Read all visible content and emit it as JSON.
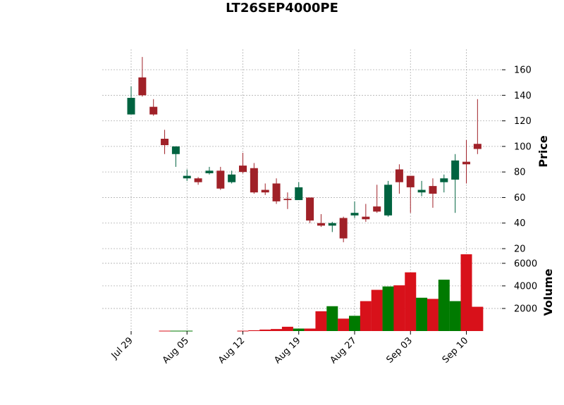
{
  "chart_data": {
    "type": "candlestick",
    "title": "LT26SEP4000PE",
    "ylabel_price": "Price",
    "ylabel_volume": "Volume",
    "price_ylim": [
      20,
      176
    ],
    "volume_ylim": [
      0,
      7300
    ],
    "price_ticks": [
      "20",
      "40",
      "60",
      "80",
      "100",
      "120",
      "140",
      "160"
    ],
    "volume_ticks": [
      "2000",
      "4000",
      "6000"
    ],
    "x_tick_labels": [
      {
        "index": 0,
        "label": "Jul 29"
      },
      {
        "index": 5,
        "label": "Aug 05"
      },
      {
        "index": 10,
        "label": "Aug 12"
      },
      {
        "index": 15,
        "label": "Aug 19"
      },
      {
        "index": 20,
        "label": "Aug 27"
      },
      {
        "index": 25,
        "label": "Sep 03"
      },
      {
        "index": 30,
        "label": "Sep 10"
      }
    ],
    "up_color": "#006340",
    "down_color": "#a02128",
    "volume_up_color": "#007a00",
    "volume_down_color": "#d8111a",
    "grid": true,
    "candles": [
      {
        "o": 125,
        "h": 147,
        "l": 125,
        "c": 138,
        "v": 0
      },
      {
        "o": 154,
        "h": 170,
        "l": 139,
        "c": 140,
        "v": 0
      },
      {
        "o": 131,
        "h": 137,
        "l": 124,
        "c": 125,
        "v": 0
      },
      {
        "o": 106,
        "h": 113,
        "l": 94,
        "c": 101,
        "v": 30
      },
      {
        "o": 94,
        "h": 100,
        "l": 84,
        "c": 100,
        "v": 30
      },
      {
        "o": 75,
        "h": 82,
        "l": 73,
        "c": 77,
        "v": 30
      },
      {
        "o": 75,
        "h": 76,
        "l": 70,
        "c": 72,
        "v": 0
      },
      {
        "o": 79,
        "h": 84,
        "l": 78,
        "c": 81,
        "v": 0
      },
      {
        "o": 81,
        "h": 84,
        "l": 66,
        "c": 67,
        "v": 0
      },
      {
        "o": 72,
        "h": 81,
        "l": 71,
        "c": 78,
        "v": 0
      },
      {
        "o": 85,
        "h": 95,
        "l": 79,
        "c": 80,
        "v": 30
      },
      {
        "o": 83,
        "h": 87,
        "l": 63,
        "c": 64,
        "v": 70
      },
      {
        "o": 66,
        "h": 71,
        "l": 62,
        "c": 64,
        "v": 130
      },
      {
        "o": 71,
        "h": 75,
        "l": 55,
        "c": 57,
        "v": 180
      },
      {
        "o": 59,
        "h": 64,
        "l": 51,
        "c": 58,
        "v": 380
      },
      {
        "o": 58,
        "h": 72,
        "l": 58,
        "c": 68,
        "v": 220
      },
      {
        "o": 60,
        "h": 60,
        "l": 40,
        "c": 42,
        "v": 220
      },
      {
        "o": 40,
        "h": 47,
        "l": 37,
        "c": 38,
        "v": 1750
      },
      {
        "o": 38,
        "h": 41,
        "l": 33,
        "c": 40,
        "v": 2200
      },
      {
        "o": 44,
        "h": 45,
        "l": 25,
        "c": 28,
        "v": 1100
      },
      {
        "o": 46,
        "h": 57,
        "l": 44,
        "c": 48,
        "v": 1350
      },
      {
        "o": 45,
        "h": 55,
        "l": 41,
        "c": 43,
        "v": 2650
      },
      {
        "o": 53,
        "h": 70,
        "l": 48,
        "c": 49,
        "v": 3650
      },
      {
        "o": 46,
        "h": 73,
        "l": 45,
        "c": 70,
        "v": 3950
      },
      {
        "o": 82,
        "h": 86,
        "l": 63,
        "c": 72,
        "v": 4050
      },
      {
        "o": 77,
        "h": 77,
        "l": 48,
        "c": 68,
        "v": 5200
      },
      {
        "o": 64,
        "h": 73,
        "l": 61,
        "c": 66,
        "v": 2950
      },
      {
        "o": 69,
        "h": 75,
        "l": 52,
        "c": 63,
        "v": 2850
      },
      {
        "o": 72,
        "h": 78,
        "l": 64,
        "c": 75,
        "v": 4550
      },
      {
        "o": 74,
        "h": 94,
        "l": 48,
        "c": 89,
        "v": 2650
      },
      {
        "o": 88,
        "h": 105,
        "l": 71,
        "c": 86,
        "v": 6800
      },
      {
        "o": 102,
        "h": 137,
        "l": 94,
        "c": 98,
        "v": 2150
      }
    ]
  }
}
